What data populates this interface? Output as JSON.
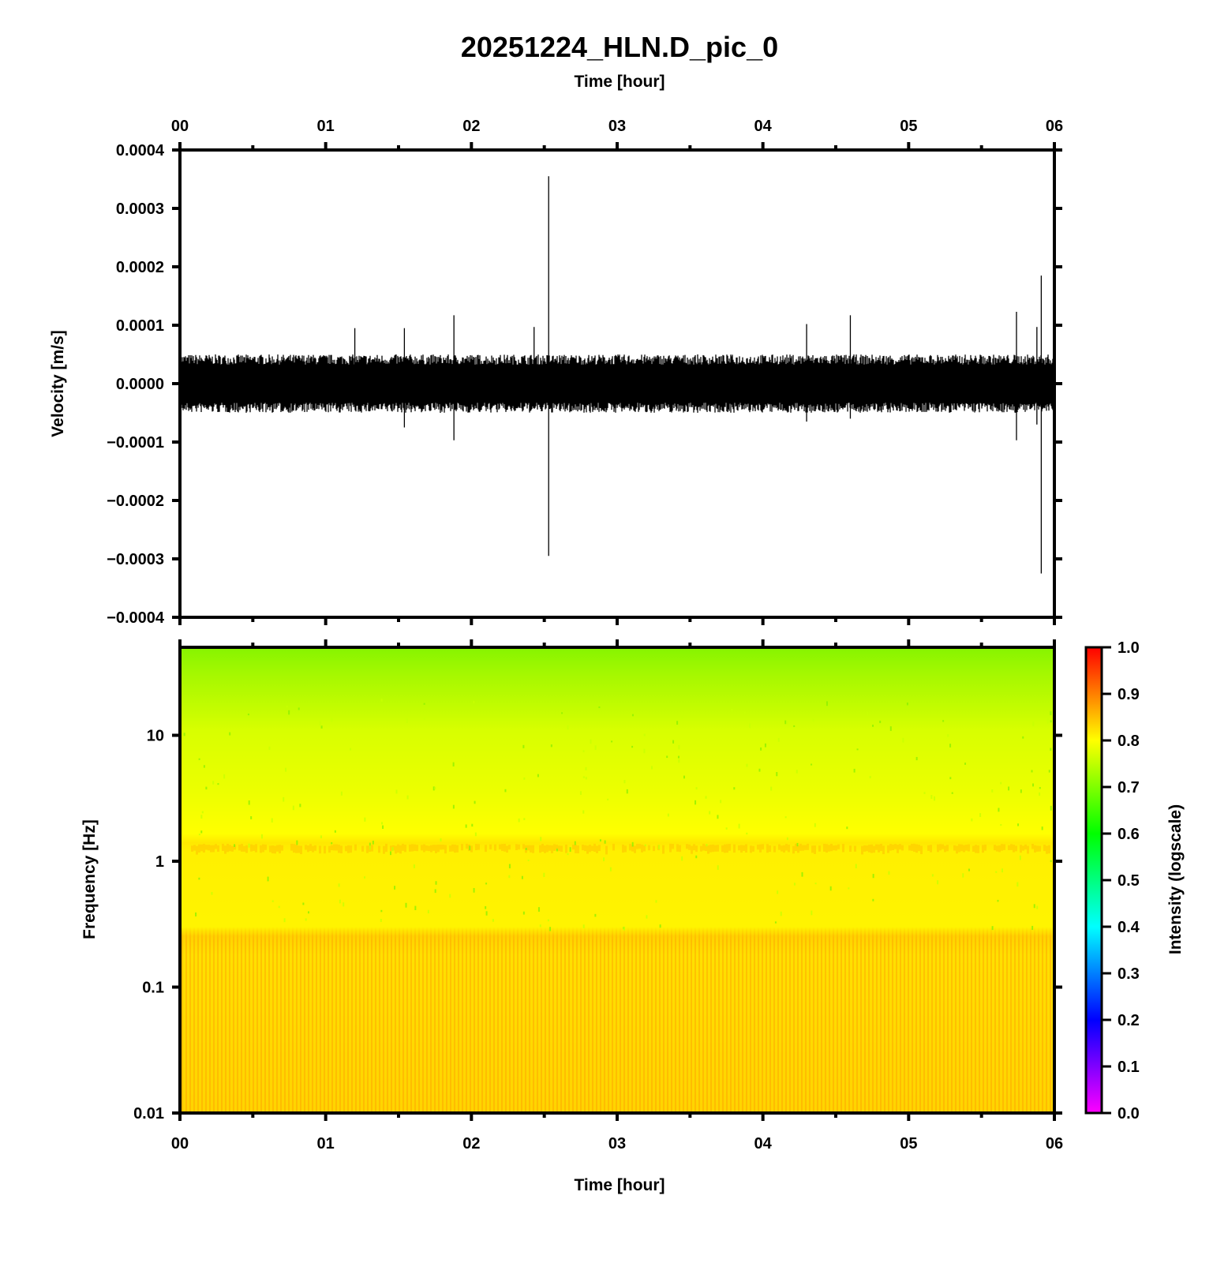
{
  "chart_data": [
    {
      "type": "line",
      "title": "20251224_HLN.D_pic_0",
      "xlabel": "Time [hour]",
      "ylabel": "Velocity [m/s]",
      "xlim": [
        0,
        6
      ],
      "ylim": [
        -0.0004,
        0.0004
      ],
      "x_tick_labels": [
        "00",
        "01",
        "02",
        "03",
        "04",
        "05",
        "06"
      ],
      "y_ticks": [
        -0.0004,
        -0.0003,
        -0.0002,
        -0.0001,
        0,
        0.0001,
        0.0002,
        0.0003,
        0.0004
      ],
      "y_tick_labels": [
        "−0.0004",
        "−0.0003",
        "−0.0002",
        "−0.0001",
        "0.0000",
        "0.0001",
        "0.0002",
        "0.0003",
        "0.0004"
      ],
      "background_noise_amplitude": 5e-05,
      "spikes": [
        {
          "x": 1.2,
          "high": 9.5e-05,
          "low": -4e-05
        },
        {
          "x": 1.54,
          "high": 9.5e-05,
          "low": -7.5e-05
        },
        {
          "x": 1.88,
          "high": 0.000117,
          "low": -9.7e-05
        },
        {
          "x": 2.43,
          "high": 9.7e-05,
          "low": -4e-05
        },
        {
          "x": 2.53,
          "high": 0.000355,
          "low": -0.000295
        },
        {
          "x": 4.3,
          "high": 0.000102,
          "low": -6.5e-05
        },
        {
          "x": 4.6,
          "high": 0.000117,
          "low": -6e-05
        },
        {
          "x": 5.74,
          "high": 0.000123,
          "low": -9.7e-05
        },
        {
          "x": 5.88,
          "high": 9.7e-05,
          "low": -7e-05
        },
        {
          "x": 5.91,
          "high": 0.000185,
          "low": -0.000325
        }
      ],
      "grid": false
    },
    {
      "type": "heatmap",
      "xlabel": "Time [hour]",
      "ylabel": "Frequency [Hz]",
      "xlim": [
        0,
        6
      ],
      "ylim": [
        0.01,
        50
      ],
      "y_scale": "log",
      "x_tick_labels": [
        "00",
        "01",
        "02",
        "03",
        "04",
        "05",
        "06"
      ],
      "y_ticks": [
        0.01,
        0.1,
        1,
        10
      ],
      "y_tick_labels": [
        "0.01",
        "0.1",
        "1",
        "10"
      ],
      "intensity_by_frequency": [
        {
          "frequency": 50,
          "intensity": 0.72
        },
        {
          "frequency": 20,
          "intensity": 0.75
        },
        {
          "frequency": 10,
          "intensity": 0.77
        },
        {
          "frequency": 3,
          "intensity": 0.79
        },
        {
          "frequency": 1.2,
          "intensity": 0.84
        },
        {
          "frequency": 0.5,
          "intensity": 0.8
        },
        {
          "frequency": 0.25,
          "intensity": 0.85
        },
        {
          "frequency": 0.1,
          "intensity": 0.84
        },
        {
          "frequency": 0.01,
          "intensity": 0.86
        }
      ],
      "colorbar": {
        "label": "Intensity (logscale)",
        "range": [
          0,
          1
        ],
        "ticks": [
          "0.0",
          "0.1",
          "0.2",
          "0.3",
          "0.4",
          "0.5",
          "0.6",
          "0.7",
          "0.8",
          "0.9",
          "1.0"
        ],
        "colors": [
          "#ff00ff",
          "#0000ff",
          "#00ffff",
          "#00ff00",
          "#ffff00",
          "#ff0000"
        ]
      }
    }
  ]
}
